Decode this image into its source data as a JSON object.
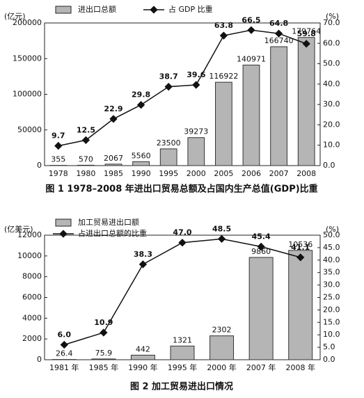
{
  "chart_data": [
    {
      "type": "combo",
      "title": "图 1  1978–2008 年进出口贸易总额及占国内生产总值(GDP)比重",
      "y_label": "(亿元)",
      "y2_label": "(%)",
      "legend": "upper left",
      "categories": [
        "1978",
        "1980",
        "1985",
        "1990",
        "1995",
        "2000",
        "2005",
        "2006",
        "2007",
        "2008"
      ],
      "series": [
        {
          "name": "进出口总额",
          "type": "bar",
          "color": "#b5b5b5",
          "axis": "y",
          "values": [
            355,
            570,
            2067,
            5560,
            23500,
            39273,
            116922,
            140971,
            166740,
            179764
          ]
        },
        {
          "name": "占 GDP 比重",
          "type": "line",
          "color": "#111111",
          "axis": "y2",
          "values": [
            9.7,
            12.5,
            22.9,
            29.8,
            38.7,
            39.6,
            63.8,
            66.5,
            64.8,
            59.8
          ]
        }
      ],
      "ylim": [
        0,
        200000
      ],
      "yticks": [
        0,
        50000,
        100000,
        150000,
        200000
      ],
      "y2lim": [
        0,
        70
      ],
      "y2ticks": [
        {
          "value": 0,
          "label": "0.0"
        },
        {
          "value": 10,
          "label": "10.0"
        },
        {
          "value": 20,
          "label": "20.0"
        },
        {
          "value": 30,
          "label": "30.0"
        },
        {
          "value": 40,
          "label": "40.0"
        },
        {
          "value": 50,
          "label": "50.0"
        },
        {
          "value": 60,
          "label": "60.0"
        },
        {
          "value": 70,
          "label": "70.0"
        }
      ]
    },
    {
      "type": "combo",
      "title": "图 2  加工贸易进出口情况",
      "y_label": "(亿美元)",
      "y2_label": "(%)",
      "legend": "upper left",
      "categories": [
        "1981 年",
        "1985 年",
        "1990 年",
        "1995 年",
        "2000 年",
        "2007 年",
        "2008 年"
      ],
      "series": [
        {
          "name": "加工贸易进出口额",
          "type": "bar",
          "color": "#b5b5b5",
          "axis": "y",
          "values": [
            26.4,
            75.9,
            442,
            1321,
            2302,
            9860,
            10536
          ]
        },
        {
          "name": "占进出口总额的比重",
          "type": "line",
          "color": "#111111",
          "axis": "y2",
          "values": [
            6.0,
            10.9,
            38.3,
            47.0,
            48.5,
            45.4,
            41.1
          ],
          "value_labels": [
            "6.0",
            "10.9",
            "38.3",
            "47.0",
            "48.5",
            "45.4",
            "41.1"
          ]
        }
      ],
      "ylim": [
        0,
        12000
      ],
      "yticks": [
        0,
        2000,
        4000,
        6000,
        8000,
        10000,
        12000
      ],
      "y2lim": [
        0,
        50
      ],
      "y2ticks": [
        {
          "value": 0,
          "label": "0.0"
        },
        {
          "value": 5,
          "label": "5.0"
        },
        {
          "value": 10,
          "label": "10.0"
        },
        {
          "value": 15,
          "label": "15.0"
        },
        {
          "value": 20,
          "label": "20.0"
        },
        {
          "value": 25,
          "label": "25.0"
        },
        {
          "value": 30,
          "label": "30.0"
        },
        {
          "value": 35,
          "label": "35.0"
        },
        {
          "value": 40,
          "label": "40.0"
        },
        {
          "value": 45,
          "label": "45.0"
        },
        {
          "value": 50,
          "label": "50.0"
        }
      ]
    }
  ]
}
